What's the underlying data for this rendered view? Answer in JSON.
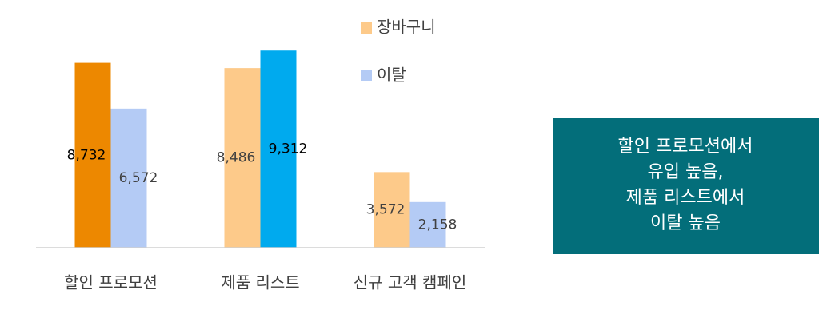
{
  "chart_data": {
    "type": "bar",
    "categories": [
      "할인 프로모션",
      "제품 리스트",
      "신규 고객 캠페인"
    ],
    "series": [
      {
        "name": "장바구니",
        "color": "#fdca8a",
        "colors": [
          "#ed8800",
          "#fdca8a",
          "#fdca8a"
        ],
        "values": [
          8732,
          8486,
          3572
        ],
        "value_labels": [
          "8,732",
          "8,486",
          "3,572"
        ]
      },
      {
        "name": "이탈",
        "color": "#b4cbf5",
        "colors": [
          "#b4cbf5",
          "#00aaee",
          "#b4cbf5"
        ],
        "values": [
          6572,
          9312,
          2158
        ],
        "value_labels": [
          "6,572",
          "9,312",
          "2,158"
        ]
      }
    ],
    "ylim": [
      0,
      10000
    ],
    "annotation": [
      "할인 프로모션에서",
      "유입 높음,",
      "제품 리스트에서",
      "이탈 높음"
    ]
  }
}
